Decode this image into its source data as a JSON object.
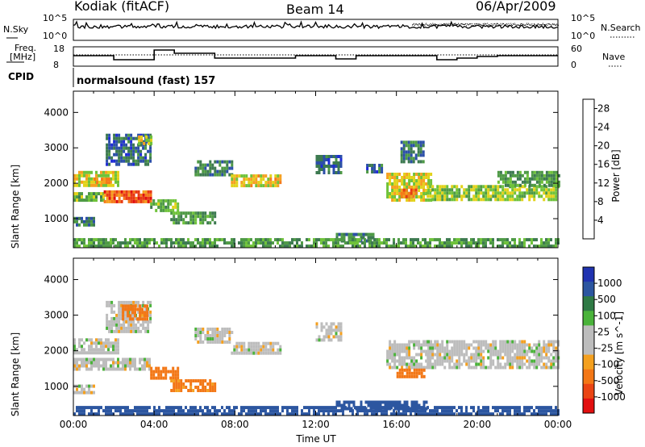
{
  "header": {
    "site": "Kodiak (fitACF)",
    "beam": "Beam 14",
    "date": "06/Apr/2009"
  },
  "noise_panel": {
    "left_label": "N.Sky",
    "right_label": "N.Search",
    "ticks_left": [
      "10^5",
      "10^0"
    ],
    "ticks_right": [
      "10^5",
      "10^0"
    ]
  },
  "freq_panel": {
    "left_label_1": "Freq.",
    "left_label_2": "[MHz]",
    "right_label": "Nave",
    "ticks_left": [
      "18",
      "8"
    ],
    "ticks_right": [
      "60",
      "0"
    ]
  },
  "cpid": {
    "label": "CPID",
    "value": "normalsound (fast) 157"
  },
  "colors": {
    "power_scale": [
      "#1e2bd6",
      "#2c4fa8",
      "#3d7a50",
      "#4e9a45",
      "#6fc23a",
      "#e2d21a",
      "#f5a020",
      "#f47a1a",
      "#e83a14",
      "#e01010"
    ],
    "velocity_scale": [
      "#2033b0",
      "#2c56a0",
      "#2f7a45",
      "#4ab33a",
      "#bdbdbd",
      "#bdbdbd",
      "#f4a01f",
      "#f37716",
      "#ea4514",
      "#e21010"
    ]
  },
  "chart_data": [
    {
      "type": "heatmap",
      "title": "",
      "xlabel": "Time UT",
      "ylabel": "Slant Range [km]",
      "xlim": [
        "00:00",
        "24:00"
      ],
      "ylim": [
        180,
        4600
      ],
      "x_ticks": [
        "00:00",
        "04:00",
        "08:00",
        "12:00",
        "16:00",
        "20:00",
        "00:00"
      ],
      "y_ticks": [
        1000,
        2000,
        3000,
        4000
      ],
      "colorbar": {
        "label": "Power [dB]",
        "ticks": [
          4,
          8,
          12,
          16,
          20,
          24,
          28
        ],
        "range": [
          0,
          30
        ]
      },
      "echo_regions": [
        {
          "t0": 0.0,
          "t1": 2.2,
          "r0": 1900,
          "r1": 2350,
          "value": 16
        },
        {
          "t0": 1.0,
          "t1": 1.8,
          "r0": 1980,
          "r1": 2160,
          "value": 22
        },
        {
          "t0": 0.0,
          "t1": 1.5,
          "r0": 1500,
          "r1": 1750,
          "value": 12
        },
        {
          "t0": 1.5,
          "t1": 3.8,
          "r0": 1450,
          "r1": 1800,
          "value": 24
        },
        {
          "t0": 0.0,
          "t1": 1.0,
          "r0": 850,
          "r1": 1050,
          "value": 8
        },
        {
          "t0": 1.6,
          "t1": 3.8,
          "r0": 2500,
          "r1": 3400,
          "value": 6
        },
        {
          "t0": 3.2,
          "t1": 3.8,
          "r0": 3100,
          "r1": 3350,
          "value": 16
        },
        {
          "t0": 3.8,
          "t1": 5.2,
          "r0": 1250,
          "r1": 1550,
          "value": 12
        },
        {
          "t0": 4.8,
          "t1": 7.0,
          "r0": 900,
          "r1": 1200,
          "value": 10
        },
        {
          "t0": 6.0,
          "t1": 7.8,
          "r0": 2250,
          "r1": 2650,
          "value": 8
        },
        {
          "t0": 7.8,
          "t1": 10.2,
          "r0": 1950,
          "r1": 2250,
          "value": 18
        },
        {
          "t0": 12.0,
          "t1": 13.3,
          "r0": 2300,
          "r1": 2800,
          "value": 6
        },
        {
          "t0": 14.5,
          "t1": 15.3,
          "r0": 2300,
          "r1": 2550,
          "value": 6
        },
        {
          "t0": 15.5,
          "t1": 17.7,
          "r0": 1500,
          "r1": 2300,
          "value": 16
        },
        {
          "t0": 16.2,
          "t1": 17.0,
          "r0": 1600,
          "r1": 1850,
          "value": 22
        },
        {
          "t0": 16.2,
          "t1": 17.3,
          "r0": 2600,
          "r1": 3200,
          "value": 8
        },
        {
          "t0": 17.5,
          "t1": 24.0,
          "r0": 1500,
          "r1": 1950,
          "value": 14
        },
        {
          "t0": 21.0,
          "t1": 24.0,
          "r0": 1950,
          "r1": 2350,
          "value": 10
        },
        {
          "t0": 13.0,
          "t1": 14.8,
          "r0": 400,
          "r1": 600,
          "value": 8
        },
        {
          "t0": 0.0,
          "t1": 24.0,
          "r0": 180,
          "r1": 450,
          "value": 10
        }
      ]
    },
    {
      "type": "heatmap",
      "title": "",
      "xlabel": "Time UT",
      "ylabel": "Slant Range [km]",
      "xlim": [
        "00:00",
        "24:00"
      ],
      "ylim": [
        180,
        4600
      ],
      "x_ticks": [
        "00:00",
        "04:00",
        "08:00",
        "12:00",
        "16:00",
        "20:00",
        "00:00"
      ],
      "y_ticks": [
        1000,
        2000,
        3000,
        4000
      ],
      "colorbar": {
        "label": "Velocity [m s^-1]",
        "ticks": [
          1000,
          500,
          100,
          25,
          -25,
          -100,
          -500,
          -1000
        ]
      },
      "echo_regions": [
        {
          "t0": 0.0,
          "t1": 2.2,
          "r0": 1900,
          "r1": 2350,
          "value": 0
        },
        {
          "t0": 0.0,
          "t1": 3.8,
          "r0": 1450,
          "r1": 1800,
          "value": 0
        },
        {
          "t0": 0.0,
          "t1": 1.0,
          "r0": 850,
          "r1": 1050,
          "value": 0
        },
        {
          "t0": 1.6,
          "t1": 3.8,
          "r0": 2500,
          "r1": 3400,
          "value": 0
        },
        {
          "t0": 2.4,
          "t1": 3.6,
          "r0": 2900,
          "r1": 3300,
          "value": -300
        },
        {
          "t0": 3.8,
          "t1": 5.2,
          "r0": 1250,
          "r1": 1550,
          "value": -150
        },
        {
          "t0": 4.8,
          "t1": 7.0,
          "r0": 900,
          "r1": 1200,
          "value": -120
        },
        {
          "t0": 6.0,
          "t1": 7.8,
          "r0": 2250,
          "r1": 2650,
          "value": 0
        },
        {
          "t0": 7.8,
          "t1": 10.2,
          "r0": 1950,
          "r1": 2250,
          "value": 0
        },
        {
          "t0": 12.0,
          "t1": 13.3,
          "r0": 2300,
          "r1": 2800,
          "value": 0
        },
        {
          "t0": 15.5,
          "t1": 17.7,
          "r0": 1500,
          "r1": 2300,
          "value": 0
        },
        {
          "t0": 16.0,
          "t1": 17.4,
          "r0": 1300,
          "r1": 1500,
          "value": -300
        },
        {
          "t0": 17.5,
          "t1": 24.0,
          "r0": 1500,
          "r1": 2300,
          "value": 0
        },
        {
          "t0": 13.0,
          "t1": 17.5,
          "r0": 350,
          "r1": 600,
          "value": 200
        },
        {
          "t0": 0.0,
          "t1": 24.0,
          "r0": 180,
          "r1": 450,
          "value": 150
        }
      ]
    }
  ]
}
